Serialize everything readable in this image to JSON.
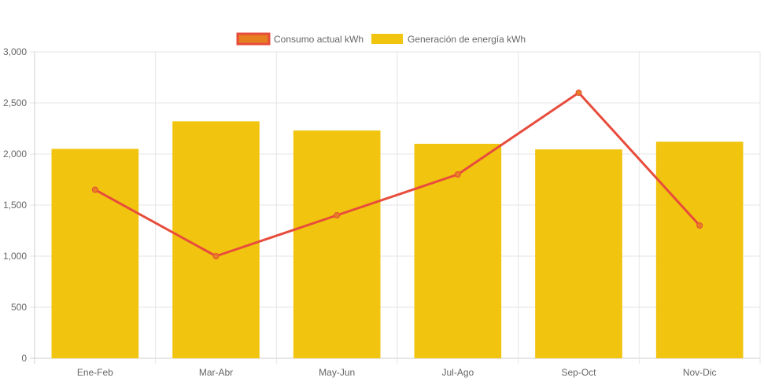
{
  "chart_data": {
    "type": "bar",
    "title": "",
    "xlabel": "",
    "ylabel": "",
    "categories": [
      "Ene-Feb",
      "Mar-Abr",
      "May-Jun",
      "Jul-Ago",
      "Sep-Oct",
      "Nov-Dic"
    ],
    "ylim": [
      0,
      3000
    ],
    "yticks": [
      0,
      500,
      1000,
      1500,
      2000,
      2500,
      3000
    ],
    "ytick_labels": [
      "0",
      "500",
      "1,000",
      "1,500",
      "2,000",
      "2,500",
      "3,000"
    ],
    "grid": true,
    "legend_position": "top",
    "series": [
      {
        "name": "Consumo actual kWh",
        "type": "line",
        "values": [
          1650,
          1000,
          1400,
          1800,
          2600,
          1300
        ],
        "color": "#e74c3c",
        "point_color": "#e67e22"
      },
      {
        "name": "Generación de energía kWh",
        "type": "bar",
        "values": [
          2050,
          2320,
          2230,
          2100,
          2045,
          2120
        ],
        "color": "#f1c40f"
      }
    ]
  }
}
